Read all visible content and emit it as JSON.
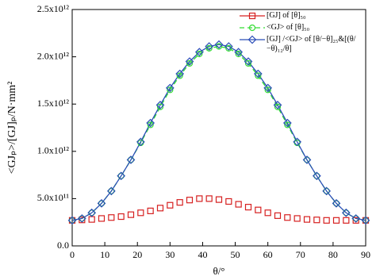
{
  "chart_data": {
    "type": "line",
    "x_label": "θ/°",
    "y_label": "<GJₚ>/[GJ]ₚ/N·mm²",
    "x": [
      0,
      3,
      6,
      9,
      12,
      15,
      18,
      21,
      24,
      27,
      30,
      33,
      36,
      39,
      42,
      45,
      48,
      51,
      54,
      57,
      60,
      63,
      66,
      69,
      72,
      75,
      78,
      81,
      84,
      87,
      90
    ],
    "series": [
      {
        "name": "[GJ] of [θ]₅₀",
        "color": "#d62020",
        "marker": "square",
        "line": "none",
        "values": [
          270000000000.0,
          275000000000.0,
          280000000000.0,
          290000000000.0,
          300000000000.0,
          310000000000.0,
          330000000000.0,
          350000000000.0,
          370000000000.0,
          400000000000.0,
          430000000000.0,
          460000000000.0,
          485000000000.0,
          500000000000.0,
          500000000000.0,
          490000000000.0,
          470000000000.0,
          440000000000.0,
          410000000000.0,
          380000000000.0,
          350000000000.0,
          320000000000.0,
          300000000000.0,
          290000000000.0,
          280000000000.0,
          275000000000.0,
          270000000000.0,
          270000000000.0,
          270000000000.0,
          270000000000.0,
          270000000000.0
        ]
      },
      {
        "name": "<GJ> of [θ]₅₀",
        "color": "#33dd33",
        "marker": "circle",
        "line": "dashed",
        "values": [
          270000000000.0,
          290000000000.0,
          350000000000.0,
          450000000000.0,
          580000000000.0,
          740000000000.0,
          910000000000.0,
          1090000000000.0,
          1280000000000.0,
          1470000000000.0,
          1650000000000.0,
          1800000000000.0,
          1930000000000.0,
          2030000000000.0,
          2090000000000.0,
          2110000000000.0,
          2090000000000.0,
          2030000000000.0,
          1930000000000.0,
          1800000000000.0,
          1650000000000.0,
          1470000000000.0,
          1280000000000.0,
          1090000000000.0,
          910000000000.0,
          740000000000.0,
          580000000000.0,
          450000000000.0,
          350000000000.0,
          290000000000.0,
          270000000000.0
        ]
      },
      {
        "name": "[GJ] /<GJ> of [θ/−θ]₂₅&[(θ/−θ)₁₂/θ]",
        "color": "#2a4db8",
        "marker": "diamond",
        "line": "solid",
        "values": [
          270000000000.0,
          290000000000.0,
          350000000000.0,
          450000000000.0,
          580000000000.0,
          740000000000.0,
          910000000000.0,
          1100000000000.0,
          1300000000000.0,
          1490000000000.0,
          1670000000000.0,
          1820000000000.0,
          1950000000000.0,
          2050000000000.0,
          2110000000000.0,
          2130000000000.0,
          2110000000000.0,
          2050000000000.0,
          1950000000000.0,
          1820000000000.0,
          1670000000000.0,
          1490000000000.0,
          1300000000000.0,
          1100000000000.0,
          910000000000.0,
          740000000000.0,
          580000000000.0,
          450000000000.0,
          350000000000.0,
          290000000000.0,
          270000000000.0
        ]
      }
    ],
    "xlim": [
      0,
      90
    ],
    "xticks": [
      0,
      10,
      20,
      30,
      40,
      50,
      60,
      70,
      80,
      90
    ],
    "ylim": [
      0,
      2500000000000.0
    ],
    "yticks": [
      {
        "value": 0,
        "label": "0.0"
      },
      {
        "value": 500000000000.0,
        "label": "5.0x10¹¹"
      },
      {
        "value": 1000000000000.0,
        "label": "1.0x10¹²"
      },
      {
        "value": 1500000000000.0,
        "label": "1.5x10¹²"
      },
      {
        "value": 2000000000000.0,
        "label": "2.0x10¹²"
      },
      {
        "value": 2500000000000.0,
        "label": "2.5x10¹²"
      }
    ],
    "legend": "upper right"
  }
}
